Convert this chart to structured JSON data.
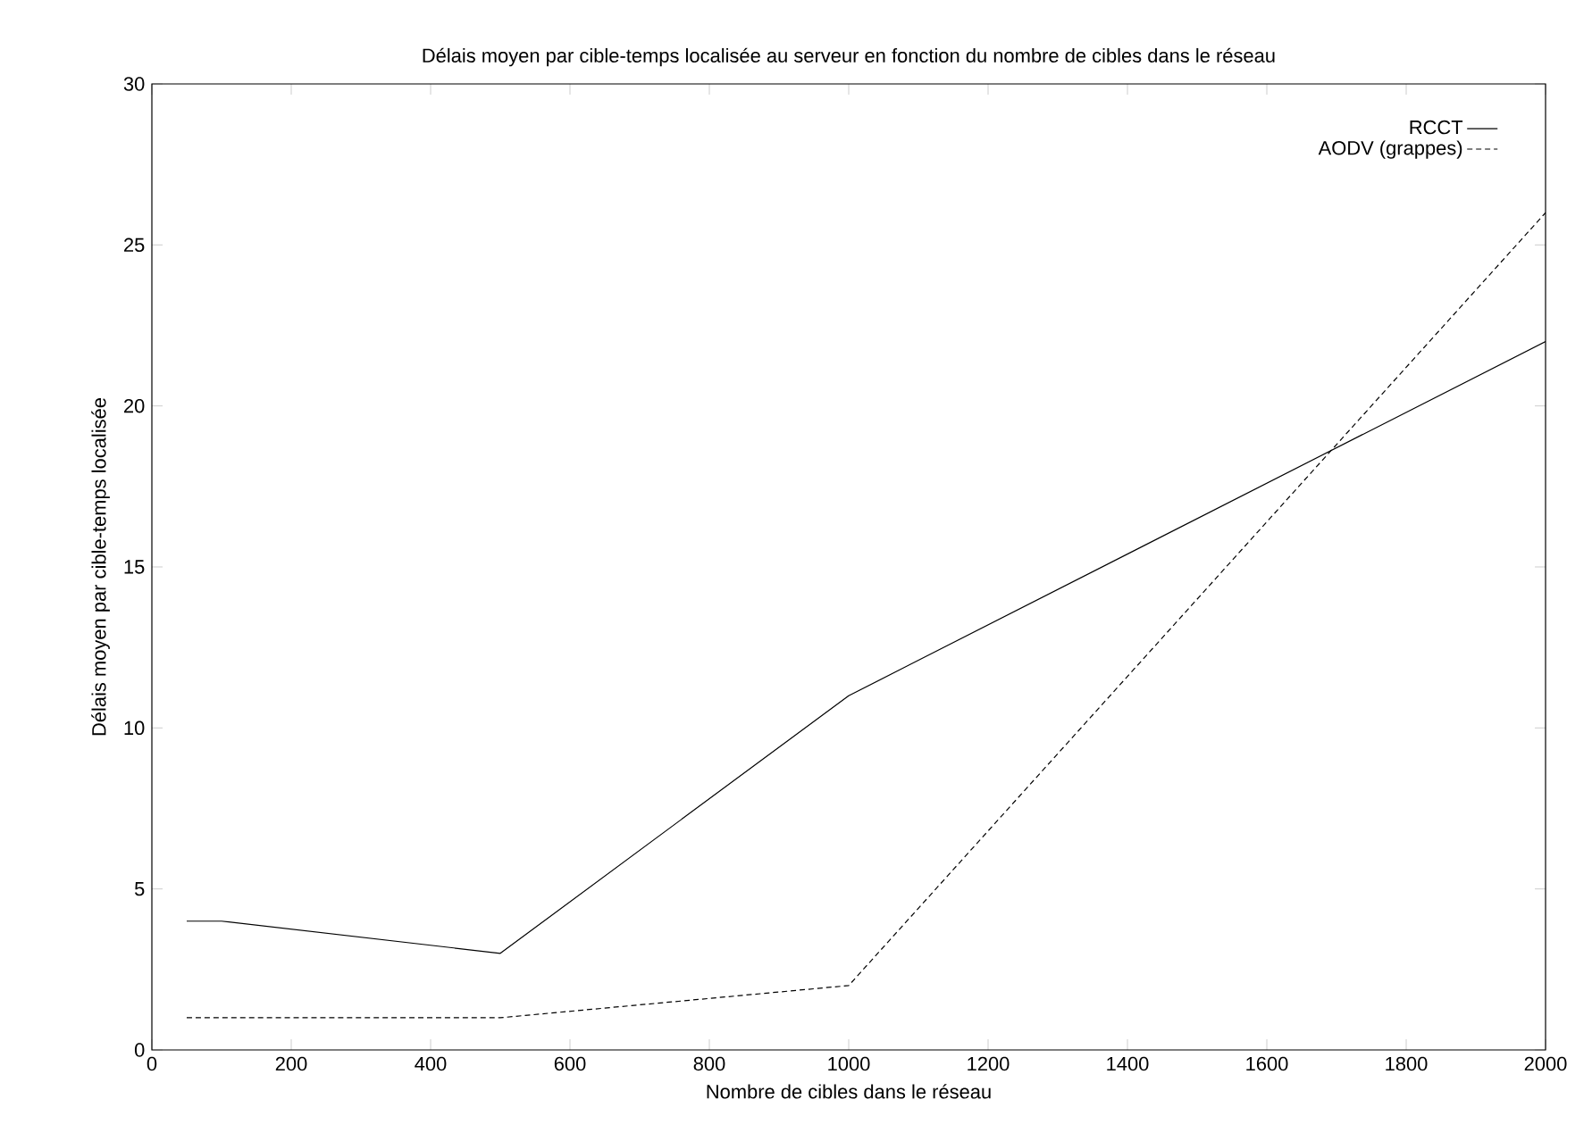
{
  "chart_data": {
    "type": "line",
    "title": "Délais moyen par cible-temps localisée au serveur en fonction du nombre de cibles dans le réseau",
    "xlabel": "Nombre de cibles dans le réseau",
    "ylabel": "Délais moyen par cible-temps localisée",
    "x": [
      50,
      100,
      500,
      1000,
      2000
    ],
    "series": [
      {
        "name": "RCCT",
        "color": "#000000",
        "line_style": "solid",
        "values": [
          4,
          4,
          3,
          11,
          22
        ]
      },
      {
        "name": "AODV (grappes)",
        "color": "#000000",
        "line_style": "dashed",
        "values": [
          1,
          1,
          1,
          2,
          26
        ]
      }
    ],
    "xlim": [
      0,
      2000
    ],
    "ylim": [
      0,
      30
    ],
    "xticks": [
      0,
      200,
      400,
      600,
      800,
      1000,
      1200,
      1400,
      1600,
      1800,
      2000
    ],
    "yticks": [
      0,
      5,
      10,
      15,
      20,
      25,
      30
    ],
    "legend": "top right",
    "marker": "none",
    "grid": false
  }
}
